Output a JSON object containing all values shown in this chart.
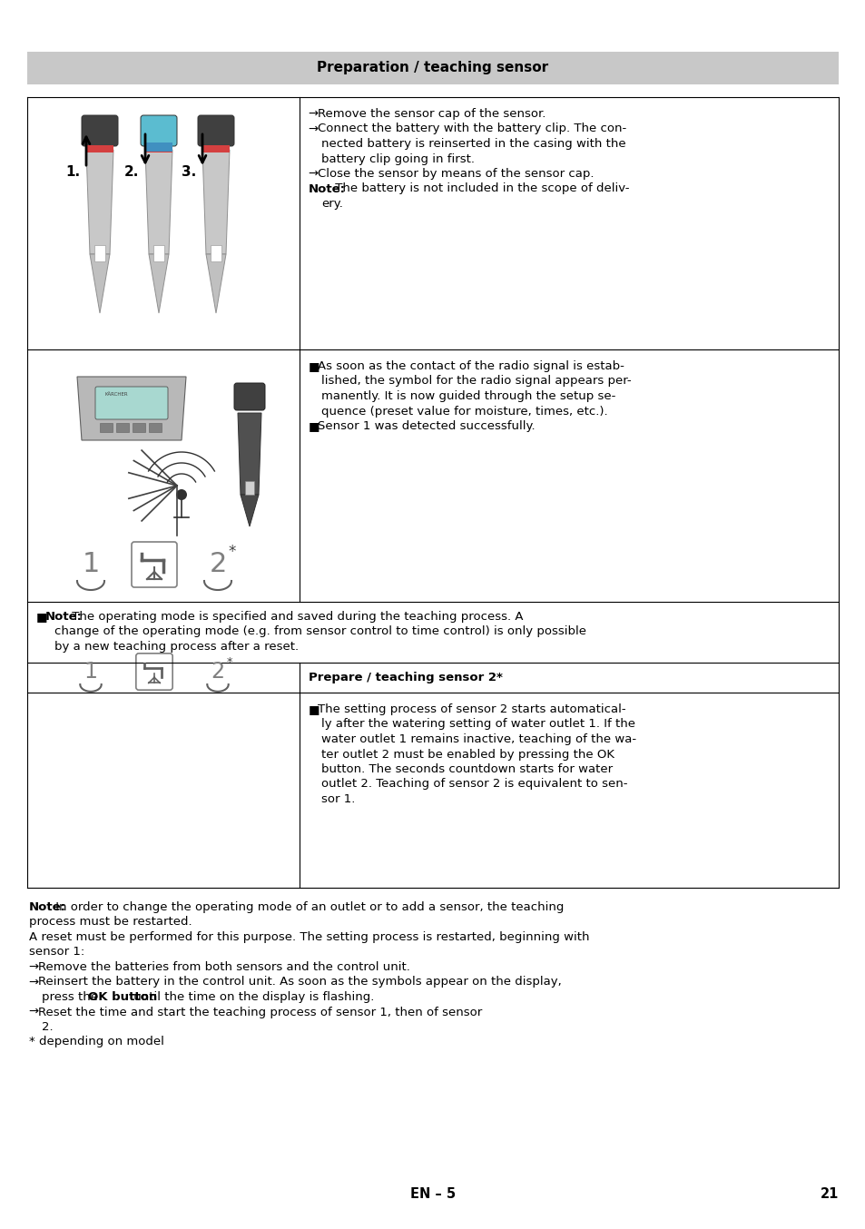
{
  "title": "Preparation / teaching sensor",
  "title_bg": "#c8c8c8",
  "page_bg": "#ffffff",
  "cell1_right": [
    {
      "arrow": true,
      "parts": [
        {
          "text": "→ ",
          "bold": false
        },
        {
          "text": "Remove the sensor cap of the sensor.",
          "bold": false
        }
      ]
    },
    {
      "arrow": true,
      "parts": [
        {
          "text": "→ ",
          "bold": false
        },
        {
          "text": "Connect the battery with the battery clip. The con-",
          "bold": false
        }
      ]
    },
    {
      "indent": true,
      "parts": [
        {
          "text": "nected battery is reinserted in the casing with the",
          "bold": false
        }
      ]
    },
    {
      "indent": true,
      "parts": [
        {
          "text": "battery clip going in first.",
          "bold": false
        }
      ]
    },
    {
      "arrow": true,
      "parts": [
        {
          "text": "→ ",
          "bold": false
        },
        {
          "text": "Close the sensor by means of the sensor cap.",
          "bold": false
        }
      ]
    },
    {
      "note": true,
      "parts": [
        {
          "text": "Note:",
          "bold": true
        },
        {
          "text": " The battery is not included in the scope of deliv-",
          "bold": false
        }
      ]
    },
    {
      "indent": true,
      "parts": [
        {
          "text": "ery.",
          "bold": false
        }
      ]
    }
  ],
  "cell2_right": [
    {
      "bullet": true,
      "parts": [
        {
          "text": "■ ",
          "bold": false
        },
        {
          "text": "As soon as the contact of the radio signal is estab-",
          "bold": false
        }
      ]
    },
    {
      "indent": true,
      "parts": [
        {
          "text": "lished, the symbol for the radio signal appears per-",
          "bold": false
        }
      ]
    },
    {
      "indent": true,
      "parts": [
        {
          "text": "manently. It is now guided through the setup se-",
          "bold": false
        }
      ]
    },
    {
      "indent": true,
      "parts": [
        {
          "text": "quence (preset value for moisture, times, etc.).",
          "bold": false
        }
      ]
    },
    {
      "bullet": true,
      "parts": [
        {
          "text": "■ ",
          "bold": false
        },
        {
          "text": "Sensor 1 was detected successfully.",
          "bold": false
        }
      ]
    }
  ],
  "note_row": [
    {
      "bullet": true,
      "parts": [
        {
          "text": "■ ",
          "bold": false
        },
        {
          "text": "Note:",
          "bold": true
        },
        {
          "text": " The operating mode is specified and saved during the teaching process. A",
          "bold": false
        }
      ]
    },
    {
      "indent2": true,
      "parts": [
        {
          "text": "change of the operating mode (e.g. from sensor control to time control) is only possible",
          "bold": false
        }
      ]
    },
    {
      "indent2": true,
      "parts": [
        {
          "text": "by a new teaching process after a reset.",
          "bold": false
        }
      ]
    }
  ],
  "sensor2_header": "Prepare / teaching sensor 2*",
  "cell4_right": [
    {
      "bullet": true,
      "parts": [
        {
          "text": "■ ",
          "bold": false
        },
        {
          "text": "The setting process of sensor 2 starts automatical-",
          "bold": false
        }
      ]
    },
    {
      "indent": true,
      "parts": [
        {
          "text": "ly after the watering setting of water outlet 1. If the",
          "bold": false
        }
      ]
    },
    {
      "indent": true,
      "parts": [
        {
          "text": "water outlet 1 remains inactive, teaching of the wa-",
          "bold": false
        }
      ]
    },
    {
      "indent": true,
      "parts": [
        {
          "text": "ter outlet 2 must be enabled by pressing the OK",
          "bold": false
        }
      ]
    },
    {
      "indent": true,
      "parts": [
        {
          "text": "button. The seconds countdown starts for water",
          "bold": false
        }
      ]
    },
    {
      "indent": true,
      "parts": [
        {
          "text": "outlet 2. Teaching of sensor 2 is equivalent to sen-",
          "bold": false
        }
      ]
    },
    {
      "indent": true,
      "parts": [
        {
          "text": "sor 1.",
          "bold": false
        }
      ]
    }
  ],
  "footer_lines": [
    {
      "parts": [
        {
          "text": "Note:",
          "bold": true
        },
        {
          "text": " In order to change the operating mode of an outlet or to add a sensor, the teaching",
          "bold": false
        }
      ]
    },
    {
      "parts": [
        {
          "text": "process must be restarted.",
          "bold": false
        }
      ]
    },
    {
      "parts": [
        {
          "text": "A reset must be performed for this purpose. The setting process is restarted, beginning with",
          "bold": false
        }
      ]
    },
    {
      "parts": [
        {
          "text": "sensor 1:",
          "bold": false
        }
      ]
    },
    {
      "arrow": true,
      "parts": [
        {
          "text": "→ ",
          "bold": false
        },
        {
          "text": "Remove the batteries from both sensors and the control unit.",
          "bold": false
        }
      ]
    },
    {
      "arrow": true,
      "parts": [
        {
          "text": "→ ",
          "bold": false
        },
        {
          "text": "Reinsert the battery in the control unit. As soon as the symbols appear on the display,",
          "bold": false
        }
      ]
    },
    {
      "indent2": true,
      "parts": [
        {
          "text": "press the ",
          "bold": false
        },
        {
          "text": "OK button",
          "bold": true
        },
        {
          "text": " until the time on the display is flashing.",
          "bold": false
        }
      ]
    },
    {
      "arrow": true,
      "parts": [
        {
          "text": "→ ",
          "bold": false
        },
        {
          "text": "Reset the time and start the teaching process of sensor 1, then of sensor",
          "bold": false
        }
      ]
    },
    {
      "indent2": true,
      "parts": [
        {
          "text": "2.",
          "bold": false
        }
      ]
    },
    {
      "parts": [
        {
          "text": "* depending on model",
          "bold": false
        }
      ]
    }
  ],
  "footer_en": "EN – 5",
  "footer_page": "21",
  "fs": 9.5
}
